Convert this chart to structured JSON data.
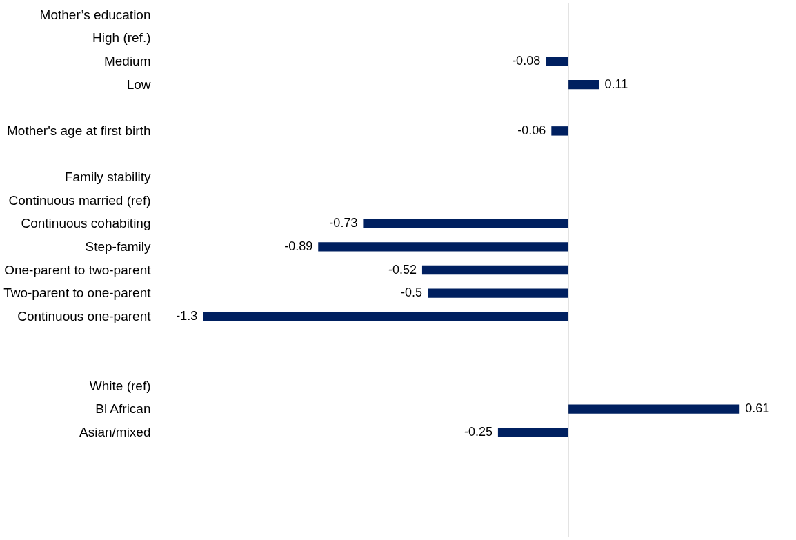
{
  "chart_data": {
    "type": "bar",
    "orientation": "horizontal",
    "data_labels": true,
    "grid": false,
    "categories": [
      "Mother’s education",
      "High (ref.)",
      "Medium",
      "Low",
      null,
      "Mother's age at first birth",
      null,
      "Family stability",
      "Continuous married (ref)",
      "Continuous cohabiting",
      "Step-family",
      "One-parent to two-parent",
      "Two-parent to one-parent",
      "Continuous one-parent",
      null,
      null,
      "White (ref)",
      "Bl African",
      "Asian/mixed",
      null,
      null,
      null,
      null
    ],
    "series": [
      {
        "color": "#002060",
        "values": [
          null,
          null,
          -0.08,
          0.11,
          null,
          -0.06,
          null,
          null,
          null,
          -0.73,
          -0.89,
          -0.52,
          -0.5,
          -1.3,
          null,
          null,
          null,
          0.61,
          -0.25,
          null,
          null,
          null,
          null
        ]
      }
    ]
  }
}
